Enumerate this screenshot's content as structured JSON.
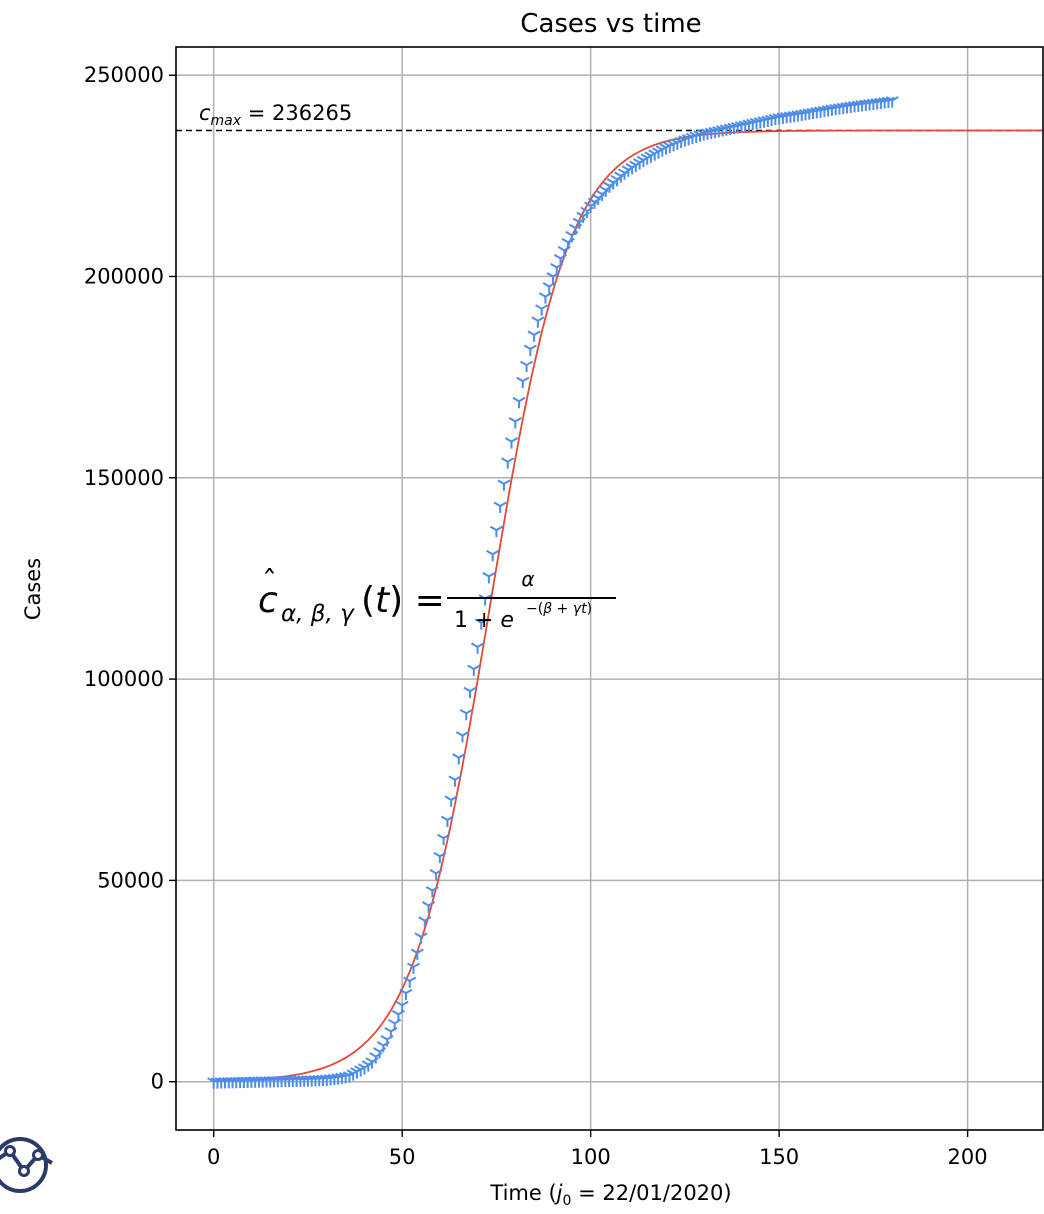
{
  "chart_data": {
    "type": "scatter",
    "title": "Cases vs time",
    "xlabel": "Time ($j_0 = 22/01/2020$)",
    "xlabel_parts": {
      "pre": "Time (",
      "var": "j",
      "sub": "0",
      "post": " = 22/01/2020)"
    },
    "ylabel": "Cases",
    "xlim": [
      -10,
      220
    ],
    "ylim": [
      -12000,
      257000
    ],
    "x_ticks": [
      0,
      50,
      100,
      150,
      200
    ],
    "x_tick_labels": [
      "0",
      "50",
      "100",
      "150",
      "200"
    ],
    "y_ticks": [
      0,
      50000,
      100000,
      150000,
      200000,
      250000
    ],
    "y_tick_labels": [
      "0",
      "50000",
      "100000",
      "150000",
      "200000",
      "250000"
    ],
    "grid": true,
    "series": [
      {
        "marker": "tri-down",
        "color": "#4b8de8",
        "x": [
          0,
          5,
          10,
          15,
          20,
          25,
          30,
          33,
          36,
          38,
          40,
          42,
          44,
          46,
          48,
          50,
          52,
          54,
          56,
          58,
          60,
          62,
          64,
          66,
          68,
          70,
          72,
          74,
          76,
          78,
          80,
          82,
          84,
          86,
          88,
          90,
          92,
          94,
          96,
          98,
          100,
          102,
          105,
          108,
          110,
          115,
          120,
          125,
          130,
          135,
          140,
          145,
          150,
          155,
          160,
          165,
          170,
          175,
          180
        ],
        "y": [
          0,
          100,
          200,
          300,
          400,
          500,
          700,
          1000,
          1500,
          2500,
          3500,
          5000,
          7500,
          10500,
          14500,
          19000,
          25000,
          32000,
          40000,
          47500,
          56000,
          65000,
          75000,
          86000,
          97000,
          108000,
          120000,
          131000,
          143000,
          154000,
          164000,
          174000,
          182000,
          189000,
          195000,
          200000,
          204500,
          208500,
          212000,
          215000,
          217500,
          219500,
          222500,
          225000,
          226500,
          229500,
          232000,
          234000,
          235500,
          236500,
          237500,
          238500,
          239500,
          240200,
          241000,
          241800,
          242500,
          243100,
          243700
        ]
      },
      {
        "name": "logistic fit",
        "line": true,
        "color": "#e24a33",
        "alpha": 236265,
        "beta": -7.0,
        "gamma": 0.0955
      }
    ],
    "annotations": [
      {
        "type": "hline",
        "y": 236265,
        "style": "dashed",
        "color": "#000000"
      },
      {
        "type": "text",
        "text": "$c_{max} = 236265$",
        "parts": {
          "var": "c",
          "sub": "max",
          "post": " = 236265"
        },
        "at": [
          -3,
          241000
        ]
      },
      {
        "type": "text",
        "text": "$\\hat{c}_{\\alpha,\\beta,\\gamma}(t) = \\frac{\\alpha}{1 + e^{-(\\beta+\\gamma t)}}$",
        "at": [
          11,
          118000
        ]
      }
    ]
  },
  "logo": {
    "icon": "line-chart-logo-icon",
    "color": "#2a3a6b"
  }
}
